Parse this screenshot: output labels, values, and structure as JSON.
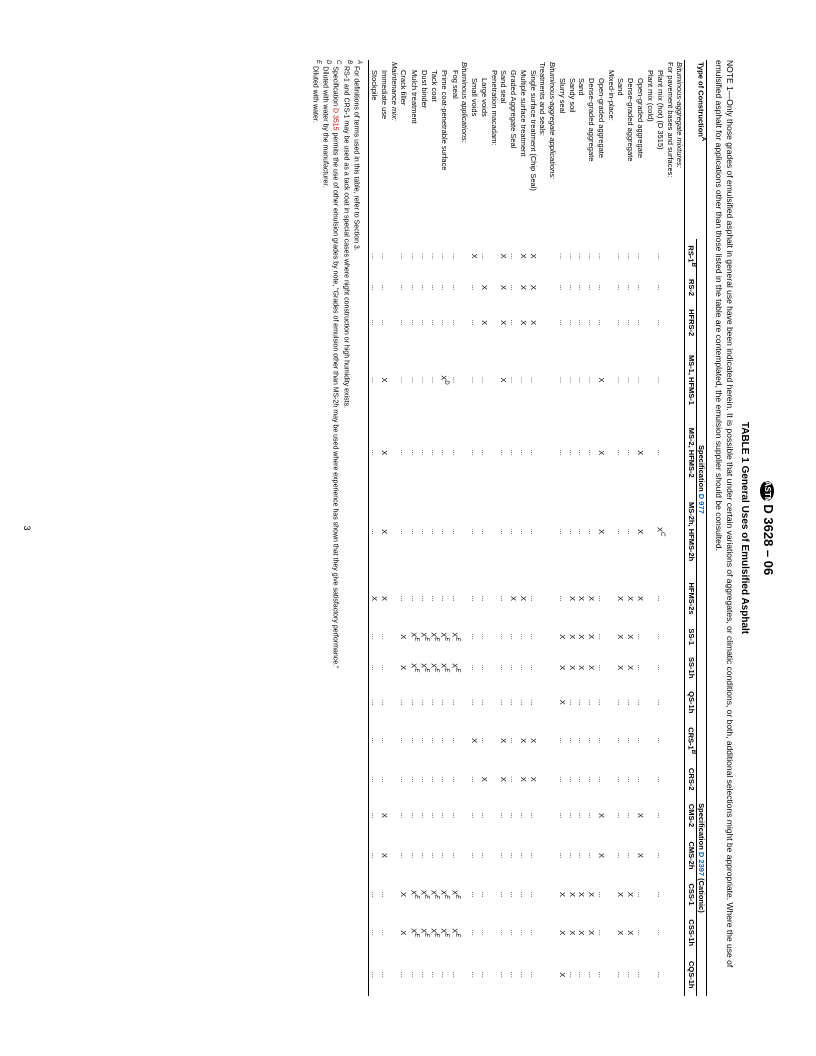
{
  "header": {
    "standard": "D 3628 – 06",
    "logo": "ASTM"
  },
  "page_number": "3",
  "table": {
    "title": "TABLE 1  General Uses of Emulsified Asphalt",
    "note_label": "NOTE 1",
    "note_text": "—Only those grades of emulsified asphalt in general use have been indicated herein. It is possible that under certain variations of aggregates, or climatic conditions, or both, additional selections might be appropriate. Where the use of emulsified asphalt for applications other than those listed in the table are contemplated, the emulsion supplier should be consulted.",
    "col_header_label": "Type of Construction",
    "col_header_sup": "A",
    "spec_groups": [
      {
        "label": "Specification",
        "link": "D 977",
        "cols": [
          "RS-1",
          "RS-2",
          "HFRS-2",
          "MS-1, HFMS-1",
          "MS-2, HFMS-2",
          "MS-2h, HFMS-2h",
          "HFMS-2s",
          "SS-1",
          "SS-1h",
          "QS-1h"
        ]
      },
      {
        "label": "Specification",
        "link": "D 2397",
        "suffix": " (Cationic)",
        "cols": [
          "CRS-1",
          "CRS-2",
          "CMS-2",
          "CMS-2h",
          "CSS-1",
          "CSS-1h",
          "CQS-1h"
        ]
      }
    ],
    "rows": [
      {
        "label": "Bituminous-aggregate mixtures:",
        "italic": true,
        "vals": [
          "",
          "",
          "",
          "",
          "",
          "",
          "",
          "",
          "",
          "",
          "",
          "",
          "",
          "",
          "",
          "",
          ""
        ]
      },
      {
        "label": "For pavement bases and surfaces:",
        "indent": 0,
        "vals": [
          "",
          "",
          "",
          "",
          "",
          "",
          "",
          "",
          "",
          "",
          "",
          "",
          "",
          "",
          "",
          "",
          ""
        ]
      },
      {
        "label": "Plant mix (hot) (D 3515)",
        "indent": 1,
        "vals": [
          "...",
          "...",
          "...",
          "...",
          "...",
          "X^C",
          "...",
          "...",
          "...",
          "...",
          "...",
          "...",
          "...",
          "...",
          "...",
          "...",
          "..."
        ]
      },
      {
        "label": "Plant mix (cold)",
        "indent": 1,
        "vals": [
          "",
          "",
          "",
          "",
          "",
          "",
          "",
          "",
          "",
          "",
          "",
          "",
          "",
          "",
          "",
          "",
          ""
        ]
      },
      {
        "label": "Open-graded aggregate",
        "indent": 2,
        "vals": [
          "...",
          "...",
          "...",
          "...",
          "X",
          "X",
          "X",
          "...",
          "...",
          "...",
          "...",
          "...",
          "X",
          "X",
          "...",
          "...",
          "..."
        ]
      },
      {
        "label": "Dense-graded aggregate",
        "indent": 2,
        "vals": [
          "...",
          "...",
          "...",
          "...",
          "...",
          "...",
          "X",
          "X",
          "X",
          "...",
          "...",
          "...",
          "...",
          "...",
          "X",
          "X",
          "..."
        ]
      },
      {
        "label": "Sand",
        "indent": 2,
        "vals": [
          "...",
          "...",
          "...",
          "...",
          "...",
          "...",
          "X",
          "X",
          "X",
          "...",
          "...",
          "...",
          "...",
          "...",
          "X",
          "X",
          "..."
        ]
      },
      {
        "label": "Mixed-in-place:",
        "indent": 1,
        "vals": [
          "",
          "",
          "",
          "",
          "",
          "",
          "",
          "",
          "",
          "",
          "",
          "",
          "",
          "",
          "",
          "",
          ""
        ]
      },
      {
        "label": "Open-graded aggregate",
        "indent": 2,
        "vals": [
          "...",
          "...",
          "...",
          "X",
          "X",
          "X",
          "...",
          "...",
          "...",
          "...",
          "...",
          "...",
          "X",
          "X",
          "...",
          "...",
          "..."
        ]
      },
      {
        "label": "Dense-graded aggregate",
        "indent": 2,
        "vals": [
          "...",
          "...",
          "...",
          "...",
          "...",
          "...",
          "X",
          "X",
          "X",
          "...",
          "...",
          "...",
          "...",
          "...",
          "X",
          "X",
          "..."
        ]
      },
      {
        "label": "Sand",
        "indent": 2,
        "vals": [
          "...",
          "...",
          "...",
          "...",
          "...",
          "...",
          "X",
          "X",
          "X",
          "...",
          "...",
          "...",
          "...",
          "...",
          "X",
          "X",
          "..."
        ]
      },
      {
        "label": "Sandy soil",
        "indent": 2,
        "vals": [
          "...",
          "...",
          "...",
          "...",
          "...",
          "...",
          "X",
          "X",
          "X",
          "...",
          "...",
          "...",
          "...",
          "...",
          "X",
          "X",
          "..."
        ]
      },
      {
        "label": "Slurry seal",
        "indent": 2,
        "vals": [
          "...",
          "...",
          "...",
          "...",
          "...",
          "...",
          "...",
          "X",
          "X",
          "X",
          "...",
          "...",
          "...",
          "...",
          "X",
          "X",
          "X"
        ]
      },
      {
        "label": "Bituminous-aggregate applications:",
        "italic": true,
        "vals": [
          "",
          "",
          "",
          "",
          "",
          "",
          "",
          "",
          "",
          "",
          "",
          "",
          "",
          "",
          "",
          "",
          ""
        ]
      },
      {
        "label": "Treatments and seals:",
        "indent": 0,
        "vals": [
          "",
          "",
          "",
          "",
          "",
          "",
          "",
          "",
          "",
          "",
          "",
          "",
          "",
          "",
          "",
          "",
          ""
        ]
      },
      {
        "label": "Single surface treatment (Chip Seal)",
        "indent": 1,
        "vals": [
          "X",
          "X",
          "X",
          "...",
          "...",
          "...",
          "...",
          "...",
          "...",
          "...",
          "X",
          "X",
          "...",
          "...",
          "...",
          "...",
          "..."
        ]
      },
      {
        "label": "Multiple surface treatment",
        "indent": 1,
        "vals": [
          "X",
          "X",
          "X",
          "...",
          "...",
          "...",
          "X",
          "...",
          "...",
          "...",
          "X",
          "X",
          "...",
          "...",
          "...",
          "...",
          "..."
        ]
      },
      {
        "label": "Graded Aggregate Seal",
        "indent": 1,
        "vals": [
          "...",
          "...",
          "...",
          "...",
          "...",
          "...",
          "X",
          "...",
          "...",
          "...",
          "...",
          "...",
          "...",
          "...",
          "...",
          "...",
          "..."
        ]
      },
      {
        "label": "Sand seal",
        "indent": 1,
        "vals": [
          "X",
          "X",
          "X",
          "X",
          "...",
          "...",
          "...",
          "...",
          "...",
          "...",
          "X",
          "X",
          "...",
          "...",
          "...",
          "...",
          "..."
        ]
      },
      {
        "label": "Penetration macadam:",
        "indent": 1,
        "vals": [
          "",
          "",
          "",
          "",
          "",
          "",
          "",
          "",
          "",
          "",
          "",
          "",
          "",
          "",
          "",
          "",
          ""
        ]
      },
      {
        "label": "Large voids",
        "indent": 2,
        "vals": [
          "...",
          "X",
          "X",
          "...",
          "...",
          "...",
          "...",
          "...",
          "...",
          "...",
          "...",
          "X",
          "...",
          "...",
          "...",
          "...",
          "..."
        ]
      },
      {
        "label": "Small voids",
        "indent": 2,
        "vals": [
          "X",
          "...",
          "...",
          "...",
          "...",
          "...",
          "...",
          "...",
          "...",
          "...",
          "X",
          "...",
          "...",
          "...",
          "...",
          "...",
          "..."
        ]
      },
      {
        "label": "Bituminous applications:",
        "italic": true,
        "vals": [
          "",
          "",
          "",
          "",
          "",
          "",
          "",
          "",
          "",
          "",
          "",
          "",
          "",
          "",
          "",
          "",
          ""
        ]
      },
      {
        "label": "Fog seal",
        "indent": 1,
        "vals": [
          "...",
          "...",
          "...",
          "...",
          "...",
          "...",
          "...",
          "X^E",
          "X^E",
          "...",
          "...",
          "...",
          "...",
          "...",
          "X^E",
          "X^E",
          "..."
        ]
      },
      {
        "label": "Prime coat-penetrable surface",
        "indent": 1,
        "vals": [
          "...",
          "...",
          "...",
          "X^D",
          "...",
          "...",
          "...",
          "X^E",
          "X^E",
          "...",
          "...",
          "...",
          "...",
          "...",
          "X^E",
          "X^E",
          "..."
        ]
      },
      {
        "label": "Tack coat",
        "indent": 1,
        "vals": [
          "...",
          "...",
          "...",
          "...",
          "...",
          "...",
          "...",
          "X^E",
          "X^E",
          "...",
          "...",
          "...",
          "...",
          "...",
          "X^E",
          "X^E",
          "..."
        ]
      },
      {
        "label": "Dust binder",
        "indent": 1,
        "vals": [
          "...",
          "...",
          "...",
          "...",
          "...",
          "...",
          "...",
          "X^E",
          "X^E",
          "...",
          "...",
          "...",
          "...",
          "...",
          "X^E",
          "X^E",
          "..."
        ]
      },
      {
        "label": "Mulch treatment",
        "indent": 1,
        "vals": [
          "...",
          "...",
          "...",
          "...",
          "...",
          "...",
          "...",
          "X^E",
          "X^E",
          "...",
          "...",
          "...",
          "...",
          "...",
          "X^E",
          "X^E",
          "..."
        ]
      },
      {
        "label": "Crack filler",
        "indent": 1,
        "vals": [
          "...",
          "...",
          "...",
          "...",
          "...",
          "...",
          "...",
          "X",
          "X",
          "...",
          "...",
          "...",
          "...",
          "...",
          "X",
          "X",
          "..."
        ]
      },
      {
        "label": "Maintenance mix:",
        "italic": true,
        "vals": [
          "",
          "",
          "",
          "",
          "",
          "",
          "",
          "",
          "",
          "",
          "",
          "",
          "",
          "",
          "",
          "",
          ""
        ]
      },
      {
        "label": "Immediate use",
        "indent": 1,
        "vals": [
          "...",
          "...",
          "...",
          "X",
          "X",
          "X",
          "X",
          "...",
          "...",
          "...",
          "...",
          "...",
          "X",
          "X",
          "...",
          "...",
          "..."
        ]
      },
      {
        "label": "Stockpile",
        "indent": 1,
        "vals": [
          "...",
          "...",
          "...",
          "...",
          "...",
          "...",
          "X",
          "...",
          "...",
          "...",
          "...",
          "...",
          "...",
          "...",
          "...",
          "...",
          "..."
        ]
      }
    ],
    "rs1_sup": "B",
    "crs1_sup": "B"
  },
  "footnotes": [
    {
      "sup": "A",
      "text": "For definitions of terms used in this table, refer to Section 3."
    },
    {
      "sup": "B",
      "text": "RS-1 and CRS-1 may be used as a tack coat in special cases where night construction or high humidity exists."
    },
    {
      "sup": "C",
      "text": "Specification ",
      "link": "D 3515",
      "text2": " permits the use of other emulsion grades by note, \"Grades of emulsion other than MS-2h may be used where experience has shown that they give satisfactory performance.\""
    },
    {
      "sup": "D",
      "text": "Diluted with water by the manufacturer."
    },
    {
      "sup": "E",
      "text": "Diluted with water."
    }
  ]
}
